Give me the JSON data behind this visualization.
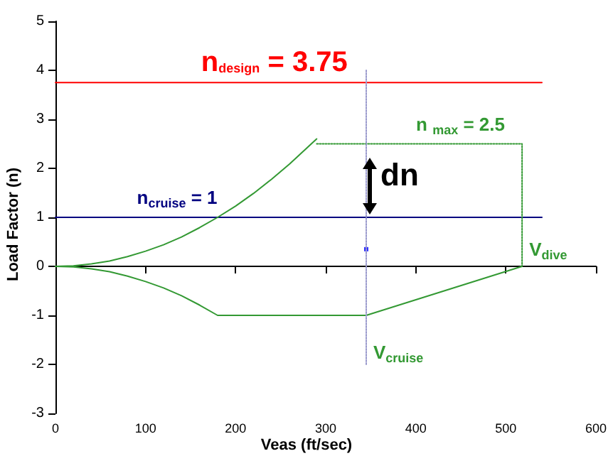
{
  "chart_data": {
    "type": "line",
    "xlabel": "Veas (ft/sec)",
    "ylabel": "Load Factor (n)",
    "xlim": [
      0,
      600
    ],
    "xticks": [
      0,
      100,
      200,
      300,
      400,
      500,
      600
    ],
    "ylim": [
      -3,
      5
    ],
    "yticks": [
      -3,
      -2,
      -1,
      0,
      1,
      2,
      3,
      4,
      5
    ],
    "marker": "none",
    "line_style": "solid",
    "series": [
      {
        "name": "n$_{design}$ = 3.75",
        "color": "#ff0000",
        "x": [
          0,
          540
        ],
        "values": [
          3.75,
          3.75
        ]
      },
      {
        "name": "n$_{cruise}$ = 1",
        "color": "#000080",
        "x": [
          0,
          540
        ],
        "values": [
          1,
          1
        ]
      },
      {
        "color": "#339933",
        "x": [
          0,
          20,
          40,
          60,
          80,
          100,
          120,
          140,
          160,
          180,
          200,
          220,
          240,
          260,
          290
        ],
        "values": [
          0,
          0.01,
          0.05,
          0.11,
          0.2,
          0.31,
          0.44,
          0.6,
          0.79,
          1,
          1.23,
          1.49,
          1.78,
          2.09,
          2.6
        ]
      },
      {
        "name": "n $_{max}$ = 2.5",
        "color": "#339933",
        "x": [
          290,
          518,
          518
        ],
        "values": [
          2.5,
          2.5,
          0
        ],
        "line_style": "dotted"
      },
      {
        "color": "#339933",
        "x": [
          0,
          20,
          40,
          60,
          80,
          100,
          120,
          140,
          160,
          180,
          345,
          518
        ],
        "values": [
          0,
          -0.01,
          -0.05,
          -0.11,
          -0.2,
          -0.31,
          -0.44,
          -0.6,
          -0.79,
          -1,
          -1,
          0
        ]
      },
      {
        "color": "#9999cc",
        "x": [
          345,
          345
        ],
        "values": [
          4,
          -2
        ],
        "line_style": "dotted"
      },
      {
        "type": "scatter",
        "marker": "square",
        "color": "#0000ff",
        "x": [
          345
        ],
        "values": [
          0.35
        ]
      }
    ],
    "annotations": [
      "dn",
      {
        "text": "V$_{dive}$",
        "x": 518,
        "y": 0
      },
      {
        "text": "V$_{cruise}$",
        "x": 345,
        "y": -1
      }
    ]
  }
}
